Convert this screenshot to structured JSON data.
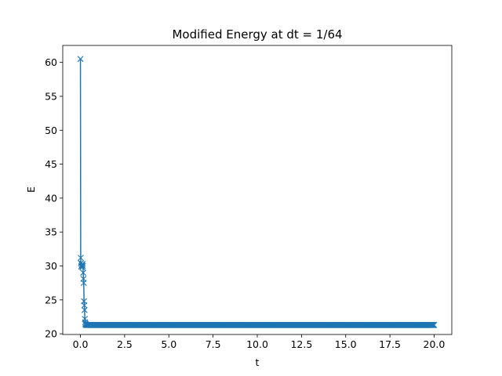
{
  "chart_data": {
    "type": "line",
    "title": "Modified Energy at dt = 1/64",
    "xlabel": "t",
    "ylabel": "E",
    "xlim": [
      -1.0,
      21.0
    ],
    "ylim": [
      19.9,
      62.5
    ],
    "xticks": [
      0.0,
      2.5,
      5.0,
      7.5,
      10.0,
      12.5,
      15.0,
      17.5,
      20.0
    ],
    "xtick_labels": [
      "0.0",
      "2.5",
      "5.0",
      "7.5",
      "10.0",
      "12.5",
      "15.0",
      "17.5",
      "20.0"
    ],
    "yticks": [
      20,
      25,
      30,
      35,
      40,
      45,
      50,
      55,
      60
    ],
    "ytick_labels": [
      "20",
      "25",
      "30",
      "35",
      "40",
      "45",
      "50",
      "55",
      "60"
    ],
    "grid": false,
    "legend": "none",
    "marker": "x",
    "color": "#1f77b4",
    "dt": 0.015625,
    "t_end": 20.0,
    "series": [
      {
        "initial_points": [
          [
            0.0,
            60.5
          ],
          [
            0.015625,
            31.2
          ],
          [
            0.03125,
            30.4
          ],
          [
            0.046875,
            29.9
          ],
          [
            0.0625,
            30.0
          ],
          [
            0.078125,
            30.2
          ],
          [
            0.09375,
            30.1
          ],
          [
            0.109375,
            29.8
          ],
          [
            0.125,
            30.3
          ],
          [
            0.140625,
            30.0
          ],
          [
            0.15625,
            29.0
          ],
          [
            0.171875,
            28.1
          ],
          [
            0.1875,
            27.5
          ],
          [
            0.203125,
            24.8
          ],
          [
            0.21875,
            24.2
          ],
          [
            0.234375,
            23.5
          ],
          [
            0.25,
            22.2
          ],
          [
            0.265625,
            21.7
          ],
          [
            0.28125,
            21.5
          ],
          [
            0.296875,
            21.4
          ]
        ],
        "steady_value": 21.3
      }
    ]
  }
}
